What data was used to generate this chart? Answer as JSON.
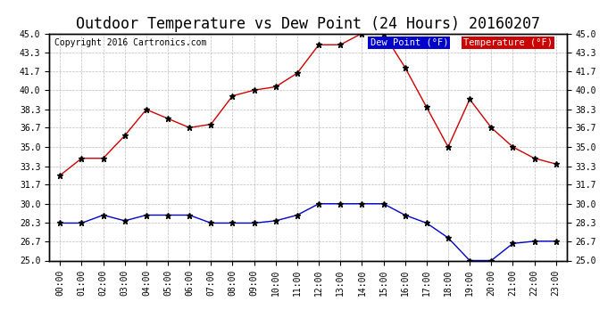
{
  "title": "Outdoor Temperature vs Dew Point (24 Hours) 20160207",
  "copyright": "Copyright 2016 Cartronics.com",
  "background_color": "#ffffff",
  "plot_bg_color": "#ffffff",
  "grid_color": "#aaaaaa",
  "x_labels": [
    "00:00",
    "01:00",
    "02:00",
    "03:00",
    "04:00",
    "05:00",
    "06:00",
    "07:00",
    "08:00",
    "09:00",
    "10:00",
    "11:00",
    "12:00",
    "13:00",
    "14:00",
    "15:00",
    "16:00",
    "17:00",
    "18:00",
    "19:00",
    "20:00",
    "21:00",
    "22:00",
    "23:00"
  ],
  "temperature": [
    32.5,
    34.0,
    34.0,
    36.0,
    38.3,
    37.5,
    36.7,
    37.0,
    39.5,
    40.0,
    40.3,
    41.5,
    44.0,
    44.0,
    45.0,
    45.0,
    42.0,
    38.5,
    35.0,
    39.2,
    36.7,
    35.0,
    34.0,
    33.5
  ],
  "dew_point": [
    28.3,
    28.3,
    29.0,
    28.5,
    29.0,
    29.0,
    29.0,
    28.3,
    28.3,
    28.3,
    28.5,
    29.0,
    30.0,
    30.0,
    30.0,
    30.0,
    29.0,
    28.3,
    27.0,
    25.0,
    25.0,
    26.5,
    26.7,
    26.7
  ],
  "temp_color": "#cc0000",
  "dew_color": "#0000cc",
  "marker_color": "#000000",
  "ylim_min": 25.0,
  "ylim_max": 45.0,
  "yticks": [
    25.0,
    26.7,
    28.3,
    30.0,
    31.7,
    33.3,
    35.0,
    36.7,
    38.3,
    40.0,
    41.7,
    43.3,
    45.0
  ],
  "legend_dew_bg": "#0000cc",
  "legend_temp_bg": "#cc0000",
  "title_fontsize": 12,
  "tick_fontsize": 7,
  "copyright_fontsize": 7
}
